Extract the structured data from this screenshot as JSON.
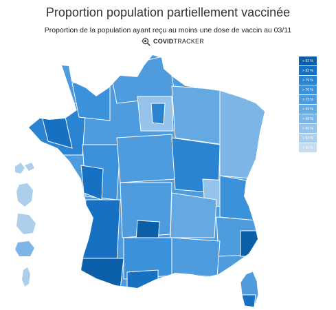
{
  "header": {
    "title": "Proportion population partiellement vaccinée",
    "subtitle": "Proportion de la population ayant reçu au moins une dose de vaccin au 03/11",
    "brand_bold": "COVID",
    "brand_regular": "TRACKER"
  },
  "legend": {
    "items": [
      {
        "label": "> 92 %",
        "color": "#0b5ea8"
      },
      {
        "label": "> 82 %",
        "color": "#1771c2"
      },
      {
        "label": "> 79 %",
        "color": "#2a84d2"
      },
      {
        "label": "> 76 %",
        "color": "#3b91da"
      },
      {
        "label": "> 73 %",
        "color": "#4e9cde"
      },
      {
        "label": "> 69 %",
        "color": "#65a9e2"
      },
      {
        "label": "> 68 %",
        "color": "#7db6e6"
      },
      {
        "label": "> 66 %",
        "color": "#95c3ea"
      },
      {
        "label": "> 63 %",
        "color": "#aecfec"
      },
      {
        "label": "> 60 %",
        "color": "#c6dcee"
      }
    ]
  },
  "map": {
    "outline_color": "#ffffff",
    "regions": [
      "metropole",
      "corse",
      "guadeloupe",
      "martinique",
      "guyane",
      "reunion",
      "mayotte"
    ]
  }
}
